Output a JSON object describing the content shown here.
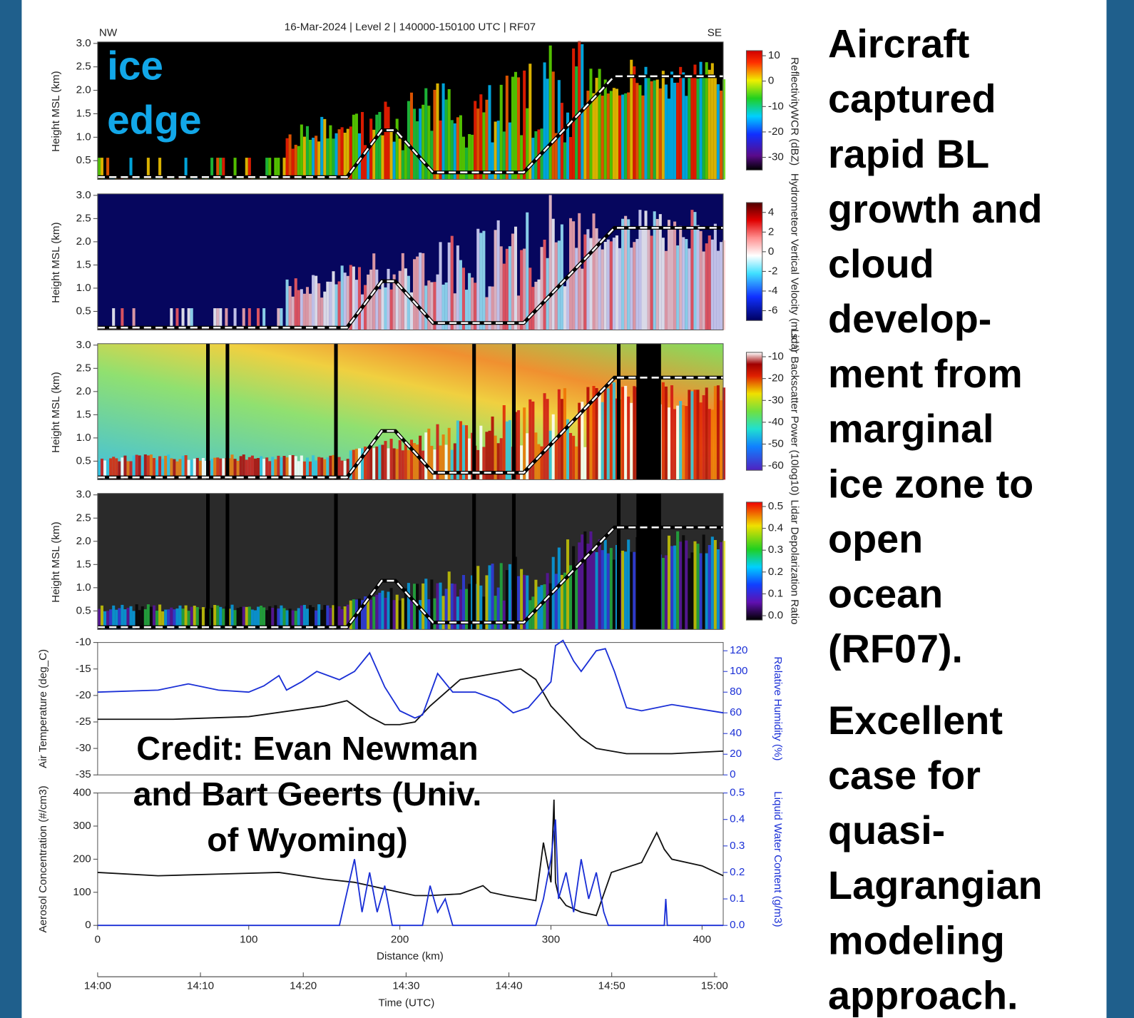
{
  "slide": {
    "overlay_label": [
      "ice",
      "edge"
    ],
    "credit": [
      "Credit: Evan Newman",
      "and Bart Geerts (Univ.",
      "of Wyoming)"
    ],
    "text_blocks": [
      [
        "Aircraft",
        "captured",
        "rapid BL",
        "growth and",
        "cloud",
        "develop-",
        "ment from",
        "marginal",
        "ice zone to",
        "open",
        "ocean",
        "(RF07)."
      ],
      [
        "Excellent",
        "case for",
        "quasi-",
        "Lagrangian",
        "modeling",
        "approach."
      ]
    ]
  },
  "chart_data": [
    {
      "type": "curtain",
      "title": "16-Mar-2024 | Level 2 | 140000-150100 UTC | RF07",
      "direction_labels": [
        "NW",
        "SE"
      ],
      "ylabel": "Height MSL (km)",
      "xlim": [
        0,
        414
      ],
      "ylim": [
        0.1,
        3.0
      ],
      "yticks": [
        0.5,
        {
          "value": 1,
          "label": "1.0"
        },
        1.5,
        {
          "value": 2,
          "label": "2.0"
        },
        2.5,
        {
          "value": 3,
          "label": "3.0"
        }
      ],
      "x": [
        0,
        165,
        188,
        197,
        222,
        282,
        342,
        414
      ],
      "values": [
        0.15,
        0.15,
        1.15,
        1.15,
        0.25,
        0.25,
        2.3,
        2.3
      ],
      "colorbar_label": "ReflectivityWCR (dBZ)",
      "colorbar_lim": [
        -35,
        12
      ],
      "colorbar_ticks": [
        10,
        0,
        -10,
        -20,
        -30
      ]
    },
    {
      "type": "curtain",
      "ylabel": "Height MSL (km)",
      "xlim": [
        0,
        414
      ],
      "ylim": [
        0.1,
        3.0
      ],
      "yticks": [
        0.5,
        {
          "value": 1,
          "label": "1.0"
        },
        1.5,
        {
          "value": 2,
          "label": "2.0"
        },
        2.5,
        {
          "value": 3,
          "label": "3.0"
        }
      ],
      "x": [
        0,
        165,
        188,
        197,
        222,
        282,
        342,
        414
      ],
      "values": [
        0.15,
        0.15,
        1.15,
        1.15,
        0.25,
        0.25,
        2.3,
        2.3
      ],
      "colorbar_label": "Hydrometeor Vertical Velocity (m s⁻¹)",
      "colorbar_lim": [
        -7,
        5
      ],
      "colorbar_ticks": [
        4,
        2,
        0,
        -2,
        -4,
        -6
      ]
    },
    {
      "type": "curtain",
      "ylabel": "Height MSL (km)",
      "xlim": [
        0,
        414
      ],
      "ylim": [
        0.1,
        3.0
      ],
      "yticks": [
        0.5,
        {
          "value": 1,
          "label": "1.0"
        },
        1.5,
        {
          "value": 2,
          "label": "2.0"
        },
        2.5,
        {
          "value": 3,
          "label": "3.0"
        }
      ],
      "x": [
        0,
        165,
        188,
        197,
        222,
        282,
        342,
        414
      ],
      "values": [
        0.15,
        0.15,
        1.15,
        1.15,
        0.25,
        0.25,
        2.3,
        2.3
      ],
      "colorbar_label": "Lidar Backscatter Power (10log10)",
      "colorbar_lim": [
        -62,
        -8
      ],
      "colorbar_ticks": [
        -10,
        -20,
        -30,
        -40,
        -50,
        -60
      ]
    },
    {
      "type": "curtain",
      "ylabel": "Height MSL (km)",
      "xlim": [
        0,
        414
      ],
      "ylim": [
        0.1,
        3.0
      ],
      "yticks": [
        0.5,
        {
          "value": 1,
          "label": "1.0"
        },
        1.5,
        {
          "value": 2,
          "label": "2.0"
        },
        2.5,
        {
          "value": 3,
          "label": "3.0"
        }
      ],
      "x": [
        0,
        165,
        188,
        197,
        222,
        282,
        342,
        414
      ],
      "values": [
        0.15,
        0.15,
        1.15,
        1.15,
        0.25,
        0.25,
        2.3,
        2.3
      ],
      "colorbar_label": "Lidar Depolarization Ratio",
      "colorbar_lim": [
        -0.02,
        0.52
      ],
      "colorbar_ticks": [
        0.5,
        0.4,
        0.3,
        0.2,
        0.1,
        {
          "value": 0,
          "label": "0.0"
        }
      ]
    },
    {
      "type": "line",
      "ylabel": "Air Temperature (deg_C)",
      "y2label": "Relative Humidity (%)",
      "xlim": [
        0,
        414
      ],
      "ylim": [
        -35,
        -10
      ],
      "yticks": [
        -10,
        -15,
        -20,
        -25,
        -30,
        -35
      ],
      "y2lim": [
        0,
        128
      ],
      "y2ticks": [
        0,
        20,
        40,
        60,
        80,
        100,
        120
      ],
      "series": [
        {
          "color": "#111111",
          "x": [
            0,
            50,
            100,
            150,
            165,
            180,
            190,
            200,
            210,
            220,
            240,
            260,
            280,
            290,
            300,
            320,
            330,
            350,
            380,
            414
          ],
          "values": [
            -24.5,
            -24.5,
            -24,
            -22,
            -21,
            -24,
            -25.5,
            -25.5,
            -25,
            -22,
            -17,
            -16,
            -15,
            -17,
            -22,
            -28,
            -30,
            -31,
            -31,
            -30.5
          ]
        },
        {
          "color": "#1a2fd6",
          "axis": "y2",
          "x": [
            0,
            40,
            60,
            80,
            100,
            110,
            120,
            125,
            135,
            145,
            160,
            170,
            180,
            190,
            200,
            210,
            215,
            225,
            235,
            250,
            265,
            275,
            285,
            300,
            303,
            308,
            315,
            320,
            330,
            336,
            342,
            350,
            360,
            380,
            414
          ],
          "values": [
            80,
            82,
            88,
            82,
            80,
            86,
            96,
            82,
            90,
            100,
            92,
            100,
            118,
            85,
            62,
            55,
            58,
            98,
            80,
            80,
            72,
            60,
            65,
            90,
            125,
            130,
            110,
            100,
            120,
            122,
            100,
            65,
            62,
            68,
            60
          ]
        }
      ]
    },
    {
      "type": "line",
      "ylabel": "Aerosol Concentration (#/cm3)",
      "y2label": "Liquid Water Content (g/m3)",
      "xlabel": "Distance (km)",
      "xlim": [
        0,
        414
      ],
      "xticks": [
        0,
        100,
        200,
        300,
        400
      ],
      "ylim": [
        0,
        400
      ],
      "yticks": [
        0,
        100,
        200,
        300,
        400
      ],
      "y2lim": [
        0,
        0.5
      ],
      "y2ticks": [
        {
          "value": 0,
          "label": "0.0"
        },
        0.1,
        0.2,
        0.3,
        0.4,
        0.5
      ],
      "time_ticks": [
        "14:00",
        "14:10",
        "14:20",
        "14:30",
        "14:40",
        "14:50",
        "15:00"
      ],
      "time_label": "Time (UTC)",
      "series": [
        {
          "color": "#111111",
          "x": [
            0,
            40,
            80,
            120,
            150,
            170,
            190,
            200,
            210,
            220,
            240,
            255,
            260,
            270,
            290,
            293,
            295,
            300,
            302,
            303,
            305,
            310,
            320,
            330,
            340,
            360,
            370,
            375,
            380,
            400,
            414
          ],
          "values": [
            160,
            150,
            155,
            160,
            140,
            130,
            110,
            100,
            90,
            90,
            95,
            120,
            100,
            90,
            75,
            180,
            250,
            130,
            380,
            130,
            90,
            60,
            40,
            30,
            160,
            190,
            280,
            230,
            200,
            180,
            150
          ]
        },
        {
          "color": "#1a2fd6",
          "axis": "y2",
          "x": [
            0,
            160,
            162,
            170,
            175,
            180,
            185,
            190,
            195,
            200,
            215,
            220,
            225,
            230,
            235,
            290,
            295,
            300,
            303,
            305,
            310,
            315,
            320,
            325,
            330,
            335,
            338,
            375,
            376,
            377,
            414
          ],
          "values": [
            0,
            0,
            0.05,
            0.25,
            0.05,
            0.2,
            0.05,
            0.15,
            0,
            0,
            0,
            0.15,
            0.05,
            0.1,
            0,
            0,
            0.1,
            0.25,
            0.4,
            0.1,
            0.2,
            0.05,
            0.25,
            0.1,
            0.2,
            0.05,
            0,
            0,
            0.1,
            0,
            0
          ]
        }
      ]
    }
  ]
}
